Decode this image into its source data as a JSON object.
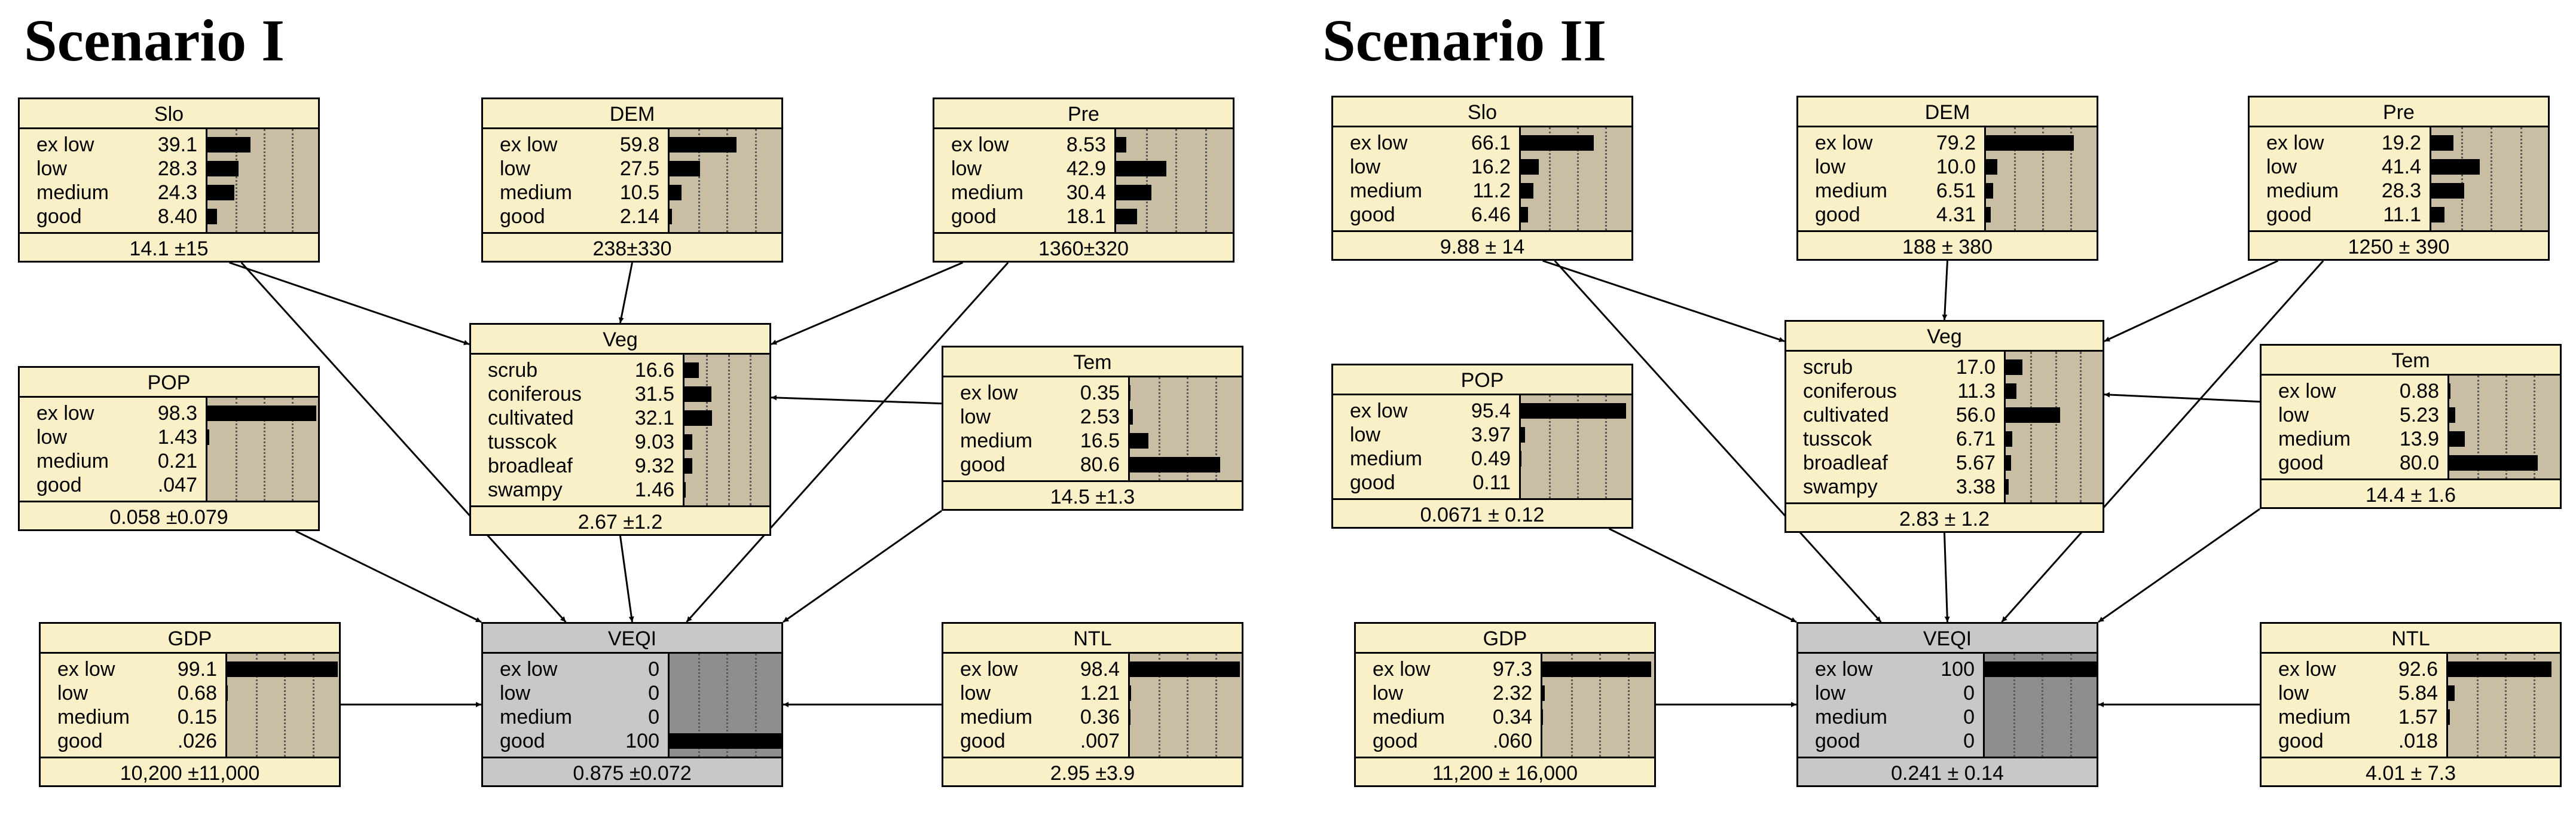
{
  "scenarios": [
    {
      "title": "Scenario I",
      "nodes": [
        {
          "id": "Slo",
          "title": "Slo",
          "states": [
            {
              "name": "ex low",
              "value": "39.1",
              "p": 39.1
            },
            {
              "name": "low",
              "value": "28.3",
              "p": 28.3
            },
            {
              "name": "medium",
              "value": "24.3",
              "p": 24.3
            },
            {
              "name": "good",
              "value": "8.40",
              "p": 8.4
            }
          ],
          "summary": "14.1 ±15"
        },
        {
          "id": "DEM",
          "title": "DEM",
          "states": [
            {
              "name": "ex low",
              "value": "59.8",
              "p": 59.8
            },
            {
              "name": "low",
              "value": "27.5",
              "p": 27.5
            },
            {
              "name": "medium",
              "value": "10.5",
              "p": 10.5
            },
            {
              "name": "good",
              "value": "2.14",
              "p": 2.14
            }
          ],
          "summary": "238±330"
        },
        {
          "id": "Pre",
          "title": "Pre",
          "states": [
            {
              "name": "ex low",
              "value": "8.53",
              "p": 8.53
            },
            {
              "name": "low",
              "value": "42.9",
              "p": 42.9
            },
            {
              "name": "medium",
              "value": "30.4",
              "p": 30.4
            },
            {
              "name": "good",
              "value": "18.1",
              "p": 18.1
            }
          ],
          "summary": "1360±320"
        },
        {
          "id": "POP",
          "title": "POP",
          "states": [
            {
              "name": "ex low",
              "value": "98.3",
              "p": 98.3
            },
            {
              "name": "low",
              "value": "1.43",
              "p": 1.43
            },
            {
              "name": "medium",
              "value": "0.21",
              "p": 0.21
            },
            {
              "name": "good",
              "value": ".047",
              "p": 0.047
            }
          ],
          "summary": "0.058 ±0.079"
        },
        {
          "id": "Veg",
          "title": "Veg",
          "states": [
            {
              "name": "scrub",
              "value": "16.6",
              "p": 16.6
            },
            {
              "name": "coniferous",
              "value": "31.5",
              "p": 31.5
            },
            {
              "name": "cultivated",
              "value": "32.1",
              "p": 32.1
            },
            {
              "name": "tusscok",
              "value": "9.03",
              "p": 9.03
            },
            {
              "name": "broadleaf",
              "value": "9.32",
              "p": 9.32
            },
            {
              "name": "swampy",
              "value": "1.46",
              "p": 1.46
            }
          ],
          "summary": "2.67 ±1.2"
        },
        {
          "id": "Tem",
          "title": "Tem",
          "states": [
            {
              "name": "ex low",
              "value": "0.35",
              "p": 0.35
            },
            {
              "name": "low",
              "value": "2.53",
              "p": 2.53
            },
            {
              "name": "medium",
              "value": "16.5",
              "p": 16.5
            },
            {
              "name": "good",
              "value": "80.6",
              "p": 80.6
            }
          ],
          "summary": "14.5 ±1.3"
        },
        {
          "id": "GDP",
          "title": "GDP",
          "states": [
            {
              "name": "ex low",
              "value": "99.1",
              "p": 99.1
            },
            {
              "name": "low",
              "value": "0.68",
              "p": 0.68
            },
            {
              "name": "medium",
              "value": "0.15",
              "p": 0.15
            },
            {
              "name": "good",
              "value": ".026",
              "p": 0.026
            }
          ],
          "summary": "10,200 ±11,000"
        },
        {
          "id": "VEQI",
          "title": "VEQI",
          "states": [
            {
              "name": "ex low",
              "value": "0",
              "p": 0
            },
            {
              "name": "low",
              "value": "0",
              "p": 0
            },
            {
              "name": "medium",
              "value": "0",
              "p": 0
            },
            {
              "name": "good",
              "value": "100",
              "p": 100
            }
          ],
          "summary": "0.875 ±0.072"
        },
        {
          "id": "NTL",
          "title": "NTL",
          "states": [
            {
              "name": "ex low",
              "value": "98.4",
              "p": 98.4
            },
            {
              "name": "low",
              "value": "1.21",
              "p": 1.21
            },
            {
              "name": "medium",
              "value": "0.36",
              "p": 0.36
            },
            {
              "name": "good",
              "value": ".007",
              "p": 0.007
            }
          ],
          "summary": "2.95 ±3.9"
        }
      ]
    },
    {
      "title": "Scenario II",
      "nodes": [
        {
          "id": "Slo",
          "title": "Slo",
          "states": [
            {
              "name": "ex low",
              "value": "66.1",
              "p": 66.1
            },
            {
              "name": "low",
              "value": "16.2",
              "p": 16.2
            },
            {
              "name": "medium",
              "value": "11.2",
              "p": 11.2
            },
            {
              "name": "good",
              "value": "6.46",
              "p": 6.46
            }
          ],
          "summary": "9.88 ± 14"
        },
        {
          "id": "DEM",
          "title": "DEM",
          "states": [
            {
              "name": "ex low",
              "value": "79.2",
              "p": 79.2
            },
            {
              "name": "low",
              "value": "10.0",
              "p": 10.0
            },
            {
              "name": "medium",
              "value": "6.51",
              "p": 6.51
            },
            {
              "name": "good",
              "value": "4.31",
              "p": 4.31
            }
          ],
          "summary": "188 ± 380"
        },
        {
          "id": "Pre",
          "title": "Pre",
          "states": [
            {
              "name": "ex low",
              "value": "19.2",
              "p": 19.2
            },
            {
              "name": "low",
              "value": "41.4",
              "p": 41.4
            },
            {
              "name": "medium",
              "value": "28.3",
              "p": 28.3
            },
            {
              "name": "good",
              "value": "11.1",
              "p": 11.1
            }
          ],
          "summary": "1250 ± 390"
        },
        {
          "id": "POP",
          "title": "POP",
          "states": [
            {
              "name": "ex low",
              "value": "95.4",
              "p": 95.4
            },
            {
              "name": "low",
              "value": "3.97",
              "p": 3.97
            },
            {
              "name": "medium",
              "value": "0.49",
              "p": 0.49
            },
            {
              "name": "good",
              "value": "0.11",
              "p": 0.11
            }
          ],
          "summary": "0.0671 ± 0.12"
        },
        {
          "id": "Veg",
          "title": "Veg",
          "states": [
            {
              "name": "scrub",
              "value": "17.0",
              "p": 17.0
            },
            {
              "name": "coniferous",
              "value": "11.3",
              "p": 11.3
            },
            {
              "name": "cultivated",
              "value": "56.0",
              "p": 56.0
            },
            {
              "name": "tusscok",
              "value": "6.71",
              "p": 6.71
            },
            {
              "name": "broadleaf",
              "value": "5.67",
              "p": 5.67
            },
            {
              "name": "swampy",
              "value": "3.38",
              "p": 3.38
            }
          ],
          "summary": "2.83 ± 1.2"
        },
        {
          "id": "Tem",
          "title": "Tem",
          "states": [
            {
              "name": "ex low",
              "value": "0.88",
              "p": 0.88
            },
            {
              "name": "low",
              "value": "5.23",
              "p": 5.23
            },
            {
              "name": "medium",
              "value": "13.9",
              "p": 13.9
            },
            {
              "name": "good",
              "value": "80.0",
              "p": 80.0
            }
          ],
          "summary": "14.4 ± 1.6"
        },
        {
          "id": "GDP",
          "title": "GDP",
          "states": [
            {
              "name": "ex low",
              "value": "97.3",
              "p": 97.3
            },
            {
              "name": "low",
              "value": "2.32",
              "p": 2.32
            },
            {
              "name": "medium",
              "value": "0.34",
              "p": 0.34
            },
            {
              "name": "good",
              "value": ".060",
              "p": 0.06
            }
          ],
          "summary": "11,200 ± 16,000"
        },
        {
          "id": "VEQI",
          "title": "VEQI",
          "states": [
            {
              "name": "ex low",
              "value": "100",
              "p": 100
            },
            {
              "name": "low",
              "value": "0",
              "p": 0
            },
            {
              "name": "medium",
              "value": "0",
              "p": 0
            },
            {
              "name": "good",
              "value": "0",
              "p": 0
            }
          ],
          "summary": "0.241 ± 0.14"
        },
        {
          "id": "NTL",
          "title": "NTL",
          "states": [
            {
              "name": "ex low",
              "value": "92.6",
              "p": 92.6
            },
            {
              "name": "low",
              "value": "5.84",
              "p": 5.84
            },
            {
              "name": "medium",
              "value": "1.57",
              "p": 1.57
            },
            {
              "name": "good",
              "value": ".018",
              "p": 0.018
            }
          ],
          "summary": "4.01 ± 7.3"
        }
      ]
    }
  ],
  "edges": [
    [
      "Slo",
      "Veg"
    ],
    [
      "DEM",
      "Veg"
    ],
    [
      "Pre",
      "Veg"
    ],
    [
      "Tem",
      "Veg"
    ],
    [
      "Slo",
      "VEQI"
    ],
    [
      "Pre",
      "VEQI"
    ],
    [
      "POP",
      "VEQI"
    ],
    [
      "Veg",
      "VEQI"
    ],
    [
      "Tem",
      "VEQI"
    ],
    [
      "GDP",
      "VEQI"
    ],
    [
      "NTL",
      "VEQI"
    ]
  ],
  "colors": {
    "node_fill": "#faf0c8",
    "bar_panel": "#c9bea3",
    "query_fill": "#c8c8c8",
    "query_panel": "#8e8e8e",
    "bar": "#000000"
  }
}
